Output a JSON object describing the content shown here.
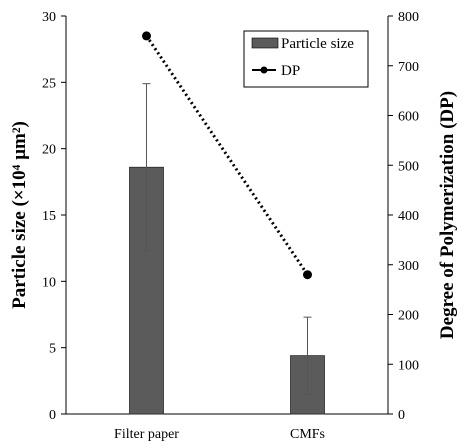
{
  "chart_data": {
    "type": "bar",
    "categories": [
      "Filter paper",
      "CMFs"
    ],
    "series": [
      {
        "name": "Particle size",
        "kind": "bar",
        "axis": "left",
        "values": [
          18.6,
          4.4
        ],
        "error": [
          6.3,
          2.9
        ],
        "color": "#5b5b5b"
      },
      {
        "name": "DP",
        "kind": "line",
        "axis": "right",
        "values": [
          760,
          280
        ],
        "style": "dotted",
        "marker": "circle",
        "color": "#000000"
      }
    ],
    "ylabel_left": "Particle size (×10⁴ µm²)",
    "ylabel_right": "Degree of Polymerization (DP)",
    "ylim_left": [
      0,
      30
    ],
    "ylim_right": [
      0,
      800
    ],
    "yticks_left": [
      "0",
      "5",
      "10",
      "15",
      "20",
      "25",
      "30"
    ],
    "yticks_right": [
      "0",
      "100",
      "200",
      "300",
      "400",
      "500",
      "600",
      "700",
      "800"
    ],
    "grid": false,
    "legend_position": "top-right"
  }
}
